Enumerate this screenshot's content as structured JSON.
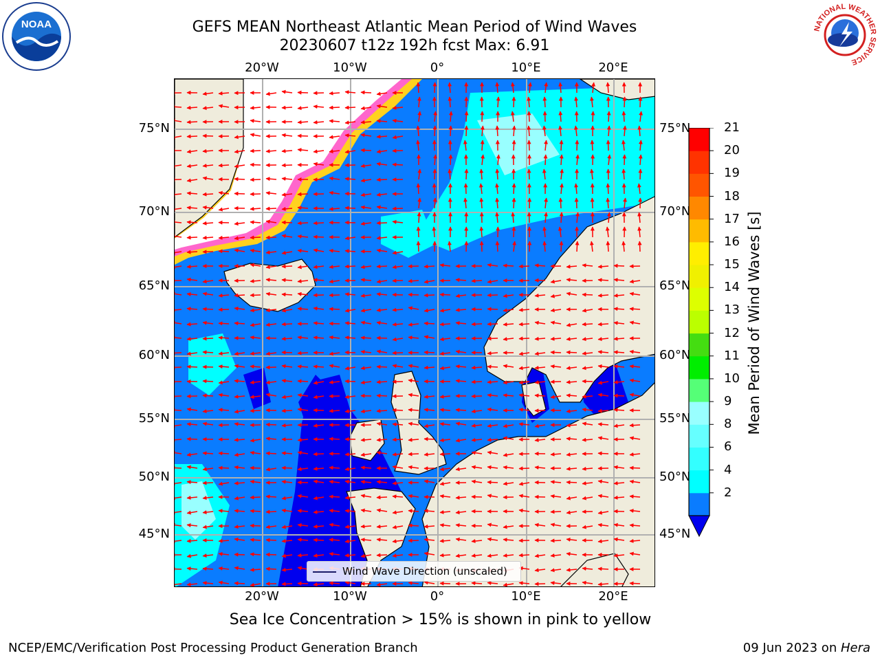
{
  "title_line1": "GEFS MEAN Northeast Atlantic Mean Period of Wind Waves",
  "title_line2": "20230607 t12z 192h fcst   Max: 6.91",
  "logos": {
    "noaa_text": "NOAA",
    "nws_arc_text": "NATIONAL WEATHER SERVICE"
  },
  "map": {
    "top_lon_labels": [
      "20°W",
      "10°W",
      "0°",
      "10°E",
      "20°E"
    ],
    "bottom_lon_labels": [
      "20°W",
      "10°W",
      "0°",
      "10°E",
      "20°E"
    ],
    "left_lat_labels": [
      "75°N",
      "70°N",
      "65°N",
      "60°N",
      "55°N",
      "50°N",
      "45°N"
    ],
    "right_lat_labels": [
      "75°N",
      "70°N",
      "65°N",
      "60°N",
      "55°N",
      "50°N",
      "45°N"
    ],
    "colors": {
      "ocean_low": "#0a7cff",
      "ocean_deep": "#0000ee",
      "ocean_cyan": "#00ffff",
      "ocean_light": "#99ffff",
      "land": "#efecdc",
      "ice_pink": "#ff66cc",
      "ice_yellow": "#ffd21f",
      "arrow": "#ff0000"
    }
  },
  "colorbar": {
    "title": "Mean Period of Wind Waves [s]",
    "tick_labels": [
      "21",
      "20",
      "19",
      "18",
      "17",
      "16",
      "15",
      "14",
      "13",
      "12",
      "11",
      "10",
      "9",
      "8",
      "6",
      "4",
      "2"
    ],
    "bands": [
      {
        "range": "2-4",
        "color": "#0a7cff"
      },
      {
        "range": "4-6",
        "color": "#00ffff"
      },
      {
        "range": "6-7",
        "color": "#33ffff"
      },
      {
        "range": "7-8",
        "color": "#66ffff"
      },
      {
        "range": "8-9",
        "color": "#99ffff"
      },
      {
        "range": "9-10",
        "color": "#55ff77"
      },
      {
        "range": "10-11",
        "color": "#00ee00"
      },
      {
        "range": "11-12",
        "color": "#44dd11"
      },
      {
        "range": "12-13",
        "color": "#bbff00"
      },
      {
        "range": "13-14",
        "color": "#ddff00"
      },
      {
        "range": "14-15",
        "color": "#f0f000"
      },
      {
        "range": "15-16",
        "color": "#ffee00"
      },
      {
        "range": "16-17",
        "color": "#ffbb00"
      },
      {
        "range": "17-18",
        "color": "#ff8800"
      },
      {
        "range": "18-19",
        "color": "#ff5500"
      },
      {
        "range": "19-20",
        "color": "#ff3300"
      },
      {
        "range": "20-21",
        "color": "#ff0000"
      }
    ],
    "under_color": "#0000ee"
  },
  "legend_label": "Wind Wave Direction (unscaled)",
  "ice_note": "Sea Ice Concentration > 15% is shown in pink to yellow",
  "credit": "NCEP/EMC/Verification Post Processing Product Generation Branch",
  "date_prefix": "09 Jun 2023 on ",
  "date_host": "Hera"
}
